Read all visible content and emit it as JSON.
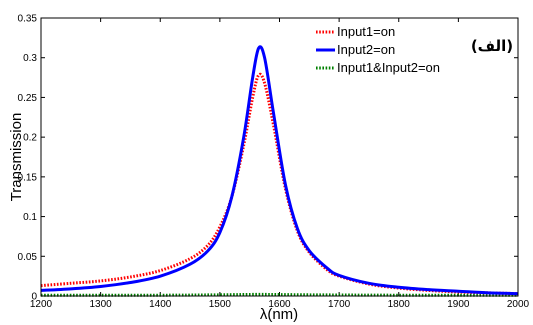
{
  "chart_data": {
    "type": "line",
    "title": "",
    "xlabel": "λ(nm)",
    "ylabel": "Transmission",
    "xlim": [
      1200,
      2000
    ],
    "ylim": [
      0,
      0.35
    ],
    "xticks": [
      1200,
      1300,
      1400,
      1500,
      1600,
      1700,
      1800,
      1900,
      2000
    ],
    "yticks": [
      0,
      0.05,
      0.1,
      0.15,
      0.2,
      0.25,
      0.3,
      0.35
    ],
    "xtick_labels": [
      "1200",
      "1300",
      "1400",
      "1500",
      "1600",
      "1700",
      "1800",
      "1900",
      "2000"
    ],
    "ytick_labels": [
      "0",
      "0.05",
      "0.1",
      "0.15",
      "0.2",
      "0.25",
      "0.3",
      "0.35"
    ],
    "grid": false,
    "legend_position": "top-right",
    "annotation": "(الف)",
    "series": [
      {
        "name": "Input1=on",
        "color": "#ff0000",
        "style": "dotted",
        "x": [
          1200,
          1250,
          1300,
          1350,
          1400,
          1450,
          1480,
          1500,
          1520,
          1540,
          1555,
          1565,
          1575,
          1590,
          1610,
          1630,
          1650,
          1680,
          1700,
          1750,
          1800,
          1850,
          1900,
          1950,
          2000
        ],
        "y": [
          0.013,
          0.016,
          0.019,
          0.024,
          0.032,
          0.047,
          0.064,
          0.087,
          0.125,
          0.19,
          0.25,
          0.278,
          0.268,
          0.215,
          0.135,
          0.082,
          0.055,
          0.033,
          0.025,
          0.015,
          0.01,
          0.007,
          0.005,
          0.004,
          0.003
        ]
      },
      {
        "name": "Input2=on",
        "color": "#0000ff",
        "style": "solid",
        "x": [
          1200,
          1250,
          1300,
          1350,
          1400,
          1450,
          1480,
          1500,
          1520,
          1540,
          1555,
          1565,
          1575,
          1590,
          1610,
          1630,
          1650,
          1680,
          1700,
          1750,
          1800,
          1850,
          1900,
          1950,
          2000
        ],
        "y": [
          0.007,
          0.009,
          0.012,
          0.017,
          0.025,
          0.04,
          0.057,
          0.08,
          0.125,
          0.2,
          0.275,
          0.312,
          0.3,
          0.23,
          0.14,
          0.085,
          0.057,
          0.035,
          0.026,
          0.016,
          0.011,
          0.008,
          0.006,
          0.004,
          0.003
        ]
      },
      {
        "name": "Input1&Input2=on",
        "color": "#008000",
        "style": "dotted",
        "x": [
          1200,
          1400,
          1500,
          1565,
          1650,
          1800,
          2000
        ],
        "y": [
          0.001,
          0.001,
          0.0015,
          0.002,
          0.0015,
          0.001,
          0.001
        ]
      }
    ]
  }
}
